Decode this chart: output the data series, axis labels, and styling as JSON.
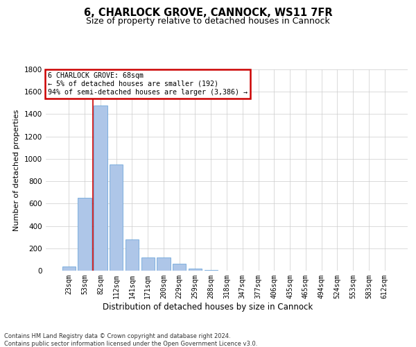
{
  "title1": "6, CHARLOCK GROVE, CANNOCK, WS11 7FR",
  "title2": "Size of property relative to detached houses in Cannock",
  "xlabel": "Distribution of detached houses by size in Cannock",
  "ylabel": "Number of detached properties",
  "annotation_title": "6 CHARLOCK GROVE: 68sqm",
  "annotation_line1": "← 5% of detached houses are smaller (192)",
  "annotation_line2": "94% of semi-detached houses are larger (3,386) →",
  "categories": [
    "23sqm",
    "53sqm",
    "82sqm",
    "112sqm",
    "141sqm",
    "171sqm",
    "200sqm",
    "229sqm",
    "259sqm",
    "288sqm",
    "318sqm",
    "347sqm",
    "377sqm",
    "406sqm",
    "435sqm",
    "465sqm",
    "494sqm",
    "524sqm",
    "553sqm",
    "583sqm",
    "612sqm"
  ],
  "values": [
    35,
    650,
    1480,
    950,
    280,
    120,
    120,
    60,
    20,
    8,
    3,
    1,
    0,
    0,
    0,
    0,
    0,
    0,
    0,
    0,
    0
  ],
  "bar_color": "#aec6e8",
  "bar_edge_color": "#5b9bd5",
  "vline_color": "#cc0000",
  "vline_x": 1.5,
  "annotation_box_color": "#cc0000",
  "annotation_bg_color": "#ffffff",
  "grid_color": "#cccccc",
  "background_color": "#ffffff",
  "ylim": [
    0,
    1800
  ],
  "yticks": [
    0,
    200,
    400,
    600,
    800,
    1000,
    1200,
    1400,
    1600,
    1800
  ],
  "footer_line1": "Contains HM Land Registry data © Crown copyright and database right 2024.",
  "footer_line2": "Contains public sector information licensed under the Open Government Licence v3.0."
}
